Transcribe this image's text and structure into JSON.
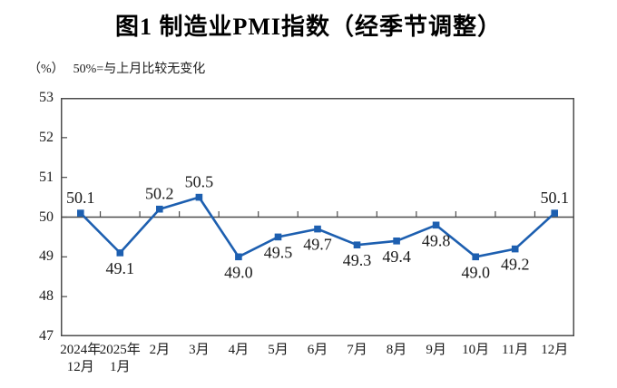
{
  "chart": {
    "title": "图1 制造业PMI指数（经季节调整）",
    "unit_label": "（%）",
    "note": "50%=与上月比较无变化"
  },
  "chart_data": {
    "type": "line",
    "title": "图1 制造业PMI指数（经季节调整）",
    "unit_label": "（%）",
    "note": "50%=与上月比较无变化",
    "categories": [
      "2024年\n12月",
      "2025年\n1月",
      "2月",
      "3月",
      "4月",
      "5月",
      "6月",
      "7月",
      "8月",
      "9月",
      "10月",
      "11月",
      "12月"
    ],
    "values": [
      50.1,
      49.1,
      50.2,
      50.5,
      49.0,
      49.5,
      49.7,
      49.3,
      49.4,
      49.8,
      49.0,
      49.2,
      50.1
    ],
    "value_labels": [
      "50.1",
      "49.1",
      "50.2",
      "50.5",
      "49.0",
      "49.5",
      "49.7",
      "49.3",
      "49.4",
      "49.8",
      "49.0",
      "49.2",
      "50.1"
    ],
    "label_position": [
      "above",
      "below",
      "above",
      "above",
      "below",
      "below",
      "below",
      "below",
      "below",
      "below",
      "below",
      "below",
      "above"
    ],
    "ylim": [
      47,
      53
    ],
    "yticks": [
      53,
      52,
      51,
      50,
      49,
      48,
      47
    ],
    "reference_line": 50,
    "grid": false,
    "legend": "none",
    "colors": {
      "line": "#1d5fb0",
      "marker": "#1d5fb0",
      "frame": "#4d4d4d",
      "reference": "#4d4d4d",
      "text": "#1a1a1a"
    }
  }
}
